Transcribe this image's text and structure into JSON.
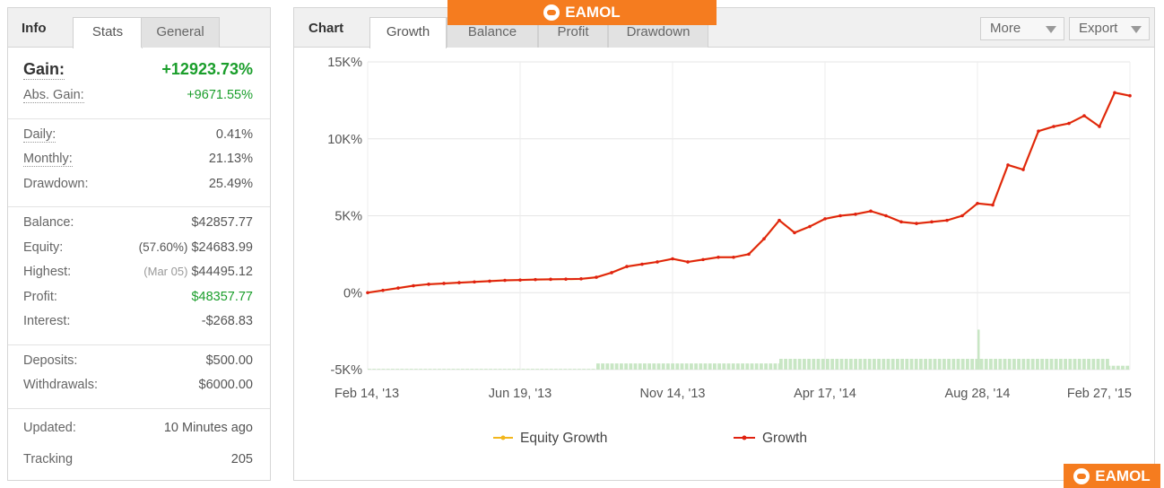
{
  "info_tabs": {
    "title": "Info",
    "stats": "Stats",
    "general": "General"
  },
  "stats": {
    "gain": {
      "label": "Gain:",
      "value": "+12923.73%"
    },
    "abs_gain": {
      "label": "Abs. Gain:",
      "value": "+9671.55%"
    },
    "daily": {
      "label": "Daily:",
      "value": "0.41%"
    },
    "monthly": {
      "label": "Monthly:",
      "value": "21.13%"
    },
    "drawdown": {
      "label": "Drawdown:",
      "value": "25.49%"
    },
    "balance": {
      "label": "Balance:",
      "value": "$42857.77"
    },
    "equity": {
      "label": "Equity:",
      "note": "(57.60%)",
      "value": "$24683.99"
    },
    "highest": {
      "label": "Highest:",
      "note": "(Mar 05)",
      "value": "$44495.12"
    },
    "profit": {
      "label": "Profit:",
      "value": "$48357.77"
    },
    "interest": {
      "label": "Interest:",
      "value": "-$268.83"
    },
    "deposits": {
      "label": "Deposits:",
      "value": "$500.00"
    },
    "withdrawals": {
      "label": "Withdrawals:",
      "value": "$6000.00"
    },
    "updated": {
      "label": "Updated:",
      "value": "10 Minutes ago"
    },
    "tracking": {
      "label": "Tracking",
      "value": "205"
    }
  },
  "chart_tabs": {
    "title": "Chart",
    "growth": "Growth",
    "balance": "Balance",
    "profit": "Profit",
    "drawdown": "Drawdown"
  },
  "toolbar": {
    "more": "More",
    "export": "Export"
  },
  "brand_text": "EAMOL",
  "colors": {
    "growth_line": "#e02210",
    "equity_line": "#f2b61c",
    "bars": "#c8e6c4",
    "gain_green": "#1a9e2b",
    "brand_orange": "#f57c1f"
  },
  "chart_data": {
    "type": "line",
    "y_ticks": [
      "15K%",
      "10K%",
      "5K%",
      "0%",
      "-5K%"
    ],
    "y_tick_values": [
      15000,
      10000,
      5000,
      0,
      -5000
    ],
    "ylim": [
      -5000,
      15000
    ],
    "x_ticks": [
      "Feb 14, '13",
      "Jun 19, '13",
      "Nov 14, '13",
      "Apr 17, '14",
      "Aug 28, '14",
      "Feb 27, '15"
    ],
    "x_tick_positions": [
      0,
      0.2,
      0.4,
      0.6,
      0.8,
      1.0
    ],
    "grid": true,
    "legend": "bottom",
    "series": [
      {
        "name": "Equity Growth",
        "color": "#f2b61c"
      },
      {
        "name": "Growth",
        "color": "#e02210",
        "x": [
          0,
          0.02,
          0.04,
          0.06,
          0.08,
          0.1,
          0.12,
          0.14,
          0.16,
          0.18,
          0.2,
          0.22,
          0.24,
          0.26,
          0.28,
          0.3,
          0.32,
          0.34,
          0.36,
          0.38,
          0.4,
          0.42,
          0.44,
          0.46,
          0.48,
          0.5,
          0.52,
          0.54,
          0.56,
          0.58,
          0.6,
          0.62,
          0.64,
          0.66,
          0.68,
          0.7,
          0.72,
          0.74,
          0.76,
          0.78,
          0.8,
          0.82,
          0.84,
          0.86,
          0.88,
          0.9,
          0.92,
          0.94,
          0.96,
          0.98,
          1.0
        ],
        "y": [
          0,
          150,
          300,
          450,
          550,
          600,
          650,
          700,
          750,
          800,
          820,
          850,
          870,
          880,
          900,
          1000,
          1300,
          1700,
          1850,
          2000,
          2200,
          2000,
          2150,
          2300,
          2300,
          2500,
          3500,
          4700,
          3900,
          4300,
          4800,
          5000,
          5100,
          5300,
          5000,
          4600,
          4500,
          4600,
          4700,
          5000,
          5800,
          5700,
          8300,
          8000,
          10500,
          10800,
          11000,
          11500,
          10800,
          13000,
          12800
        ]
      }
    ],
    "bars": {
      "name": "",
      "x_ranges": [
        [
          0,
          0.3,
          -4950
        ],
        [
          0.3,
          0.54,
          -4600
        ],
        [
          0.54,
          0.97,
          -4300
        ],
        [
          0.97,
          1.0,
          -4750
        ]
      ],
      "spike": {
        "x": 0.8,
        "y": -2400
      }
    }
  }
}
